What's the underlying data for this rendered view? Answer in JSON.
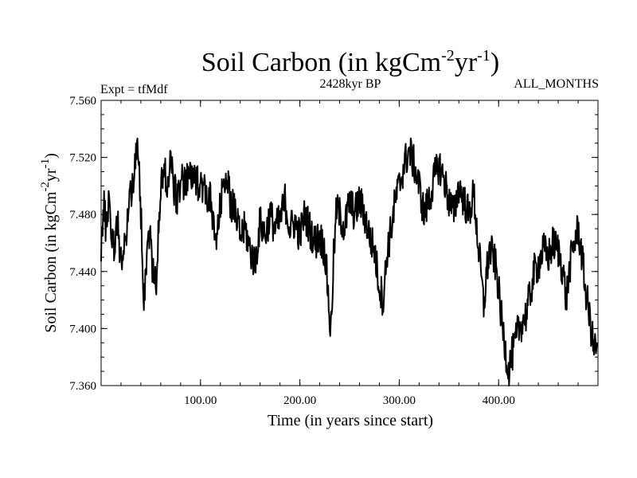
{
  "chart_data": {
    "type": "line",
    "title_prefix": "Soil Carbon (in kgCm",
    "title_exp1": "-2",
    "title_mid": "yr",
    "title_exp2": "-1",
    "title_suffix": ")",
    "subtitle": "2428kyr BP",
    "experiment": "Expt = tfMdf",
    "period": "ALL_MONTHS",
    "xlabel": "Time (in years since start)",
    "ylabel_prefix": "Soil Carbon (in kgCm",
    "ylabel_exp1": "-2",
    "ylabel_mid": "yr",
    "ylabel_exp2": "-1",
    "ylabel_suffix": ")",
    "xlim": [
      0,
      500
    ],
    "ylim": [
      7.36,
      7.56
    ],
    "xticks": [
      100,
      200,
      300,
      400
    ],
    "xtick_labels": [
      "100.00",
      "200.00",
      "300.00",
      "400.00"
    ],
    "yticks": [
      7.36,
      7.4,
      7.44,
      7.48,
      7.52,
      7.56
    ],
    "ytick_labels": [
      "7.360",
      "7.400",
      "7.440",
      "7.480",
      "7.520",
      "7.560"
    ],
    "series": [
      {
        "name": "Soil Carbon",
        "color": "#000000",
        "keypoints": [
          [
            0,
            7.46
          ],
          [
            3,
            7.485
          ],
          [
            5,
            7.47
          ],
          [
            8,
            7.495
          ],
          [
            10,
            7.47
          ],
          [
            13,
            7.455
          ],
          [
            16,
            7.478
          ],
          [
            19,
            7.455
          ],
          [
            22,
            7.445
          ],
          [
            25,
            7.465
          ],
          [
            28,
            7.49
          ],
          [
            31,
            7.5
          ],
          [
            34,
            7.515
          ],
          [
            37,
            7.525
          ],
          [
            39,
            7.5
          ],
          [
            41,
            7.465
          ],
          [
            43,
            7.42
          ],
          [
            46,
            7.455
          ],
          [
            49,
            7.47
          ],
          [
            52,
            7.44
          ],
          [
            55,
            7.43
          ],
          [
            58,
            7.47
          ],
          [
            61,
            7.505
          ],
          [
            64,
            7.51
          ],
          [
            67,
            7.5
          ],
          [
            70,
            7.52
          ],
          [
            73,
            7.5
          ],
          [
            76,
            7.49
          ],
          [
            80,
            7.505
          ],
          [
            85,
            7.5
          ],
          [
            90,
            7.51
          ],
          [
            95,
            7.5
          ],
          [
            100,
            7.505
          ],
          [
            105,
            7.495
          ],
          [
            110,
            7.49
          ],
          [
            113,
            7.47
          ],
          [
            116,
            7.46
          ],
          [
            120,
            7.485
          ],
          [
            125,
            7.51
          ],
          [
            130,
            7.49
          ],
          [
            135,
            7.48
          ],
          [
            140,
            7.465
          ],
          [
            145,
            7.47
          ],
          [
            150,
            7.455
          ],
          [
            155,
            7.445
          ],
          [
            160,
            7.475
          ],
          [
            165,
            7.465
          ],
          [
            170,
            7.48
          ],
          [
            175,
            7.47
          ],
          [
            180,
            7.475
          ],
          [
            185,
            7.49
          ],
          [
            190,
            7.47
          ],
          [
            195,
            7.475
          ],
          [
            200,
            7.465
          ],
          [
            205,
            7.48
          ],
          [
            210,
            7.47
          ],
          [
            215,
            7.46
          ],
          [
            220,
            7.465
          ],
          [
            225,
            7.455
          ],
          [
            228,
            7.43
          ],
          [
            231,
            7.395
          ],
          [
            234,
            7.45
          ],
          [
            237,
            7.485
          ],
          [
            240,
            7.48
          ],
          [
            245,
            7.47
          ],
          [
            250,
            7.49
          ],
          [
            255,
            7.48
          ],
          [
            260,
            7.49
          ],
          [
            265,
            7.48
          ],
          [
            270,
            7.465
          ],
          [
            275,
            7.455
          ],
          [
            280,
            7.43
          ],
          [
            284,
            7.42
          ],
          [
            288,
            7.455
          ],
          [
            292,
            7.47
          ],
          [
            296,
            7.49
          ],
          [
            300,
            7.5
          ],
          [
            305,
            7.515
          ],
          [
            310,
            7.525
          ],
          [
            315,
            7.515
          ],
          [
            320,
            7.5
          ],
          [
            325,
            7.48
          ],
          [
            330,
            7.49
          ],
          [
            335,
            7.505
          ],
          [
            340,
            7.515
          ],
          [
            345,
            7.505
          ],
          [
            350,
            7.49
          ],
          [
            355,
            7.48
          ],
          [
            360,
            7.5
          ],
          [
            365,
            7.49
          ],
          [
            370,
            7.48
          ],
          [
            375,
            7.495
          ],
          [
            378,
            7.47
          ],
          [
            382,
            7.44
          ],
          [
            385,
            7.415
          ],
          [
            388,
            7.44
          ],
          [
            391,
            7.455
          ],
          [
            395,
            7.45
          ],
          [
            398,
            7.44
          ],
          [
            401,
            7.42
          ],
          [
            404,
            7.4
          ],
          [
            407,
            7.385
          ],
          [
            410,
            7.37
          ],
          [
            413,
            7.38
          ],
          [
            417,
            7.39
          ],
          [
            420,
            7.4
          ],
          [
            424,
            7.405
          ],
          [
            428,
            7.41
          ],
          [
            432,
            7.425
          ],
          [
            436,
            7.44
          ],
          [
            440,
            7.445
          ],
          [
            445,
            7.455
          ],
          [
            450,
            7.45
          ],
          [
            455,
            7.46
          ],
          [
            460,
            7.455
          ],
          [
            465,
            7.44
          ],
          [
            468,
            7.42
          ],
          [
            472,
            7.445
          ],
          [
            476,
            7.46
          ],
          [
            480,
            7.47
          ],
          [
            484,
            7.45
          ],
          [
            487,
            7.43
          ],
          [
            490,
            7.415
          ],
          [
            493,
            7.4
          ],
          [
            496,
            7.385
          ],
          [
            499,
            7.39
          ]
        ]
      }
    ]
  }
}
